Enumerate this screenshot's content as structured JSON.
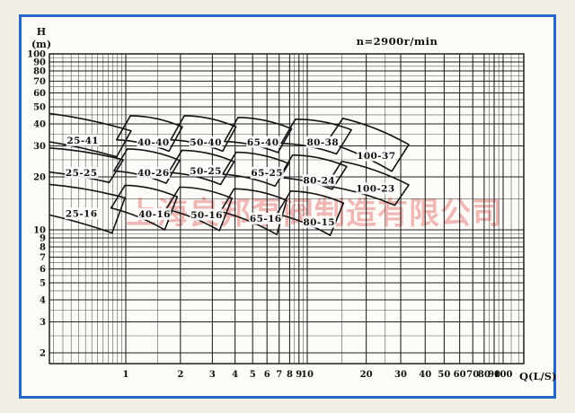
{
  "title": "n=2900r/min",
  "axes": {
    "y_label_top": "H",
    "y_label_unit": "(m)",
    "x_unit": "Q(L/S)",
    "y_ticks": [
      100,
      90,
      80,
      70,
      60,
      50,
      40,
      30,
      20,
      10,
      9,
      8,
      7,
      6,
      5,
      4,
      3,
      2
    ],
    "x_ticks": [
      1,
      2,
      3,
      4,
      5,
      6,
      7,
      8,
      9,
      10,
      20,
      30,
      40,
      50,
      60,
      70,
      80,
      90,
      100
    ],
    "y_minor": [
      2.5,
      3.5,
      4.5,
      5.5,
      6.5,
      7.5,
      8.5,
      9.5,
      15,
      25,
      35,
      45,
      55,
      65,
      75,
      85,
      95
    ],
    "x_minor": [
      0.4,
      0.45,
      0.5,
      0.55,
      0.6,
      0.65,
      0.7,
      0.75,
      0.8,
      0.85,
      0.9,
      0.95,
      1.5,
      8.5,
      9.5,
      15,
      25,
      85,
      95,
      110,
      120
    ]
  },
  "watermark": {
    "text": "上海良邦泵阀制造有限公司",
    "color": "#e05555"
  },
  "colors": {
    "frame": "#2668c6",
    "outer_bg": "#f2efe8",
    "paper": "#fcfbf7",
    "grid_major": "#1f1f1f",
    "grid_minor": "#3c3c3c",
    "curve": "#141414",
    "watermark": "#e05555"
  },
  "chart_data": {
    "type": "area",
    "title": "n=2900r/min",
    "xlabel": "Q(L/S)",
    "ylabel": "H(m)",
    "log_x": true,
    "log_y": true,
    "x_range": [
      0.38,
      127
    ],
    "y_range": [
      1.74,
      100
    ],
    "grid": "log-log graph paper",
    "legend_position": "none",
    "regions": [
      {
        "label": "25-41",
        "label_at": [
          0.58,
          32.3
        ],
        "poly": [
          [
            0.3,
            47
          ],
          [
            1.07,
            36.5
          ],
          [
            0.89,
            26
          ],
          [
            0.25,
            33.5
          ]
        ]
      },
      {
        "label": "40-40",
        "label_at": [
          1.42,
          31.6
        ],
        "poly": [
          [
            1.06,
            44.5
          ],
          [
            2.05,
            38.5
          ],
          [
            1.73,
            28
          ],
          [
            0.89,
            32.5
          ]
        ]
      },
      {
        "label": "50-40",
        "label_at": [
          2.76,
          31.6
        ],
        "poly": [
          [
            2.1,
            44.5
          ],
          [
            4.05,
            38.5
          ],
          [
            3.42,
            28
          ],
          [
            1.77,
            32.5
          ]
        ]
      },
      {
        "label": "65-40",
        "label_at": [
          5.7,
          31.6
        ],
        "poly": [
          [
            4.15,
            43.5
          ],
          [
            8.2,
            37.5
          ],
          [
            6.9,
            27.5
          ],
          [
            3.5,
            31.8
          ]
        ]
      },
      {
        "label": "80-38",
        "label_at": [
          12.0,
          31.5
        ],
        "poly": [
          [
            8.6,
            42.5
          ],
          [
            16.8,
            37.0
          ],
          [
            14.1,
            27.0
          ],
          [
            7.2,
            31.0
          ]
        ]
      },
      {
        "label": "100-37",
        "label_at": [
          22.5,
          26.5
        ],
        "poly": [
          [
            15.2,
            43.0
          ],
          [
            33.0,
            30.5
          ],
          [
            27.0,
            21.5
          ],
          [
            12.6,
            31.5
          ]
        ]
      },
      {
        "label": "25-25",
        "label_at": [
          0.57,
          21.1
        ],
        "poly": [
          [
            0.3,
            29.5
          ],
          [
            0.97,
            25.0
          ],
          [
            0.81,
            18.6
          ],
          [
            0.25,
            22.0
          ]
        ]
      },
      {
        "label": "40-26",
        "label_at": [
          1.42,
          21.1
        ],
        "poly": [
          [
            1.02,
            28.8
          ],
          [
            1.98,
            24.8
          ],
          [
            1.67,
            18.4
          ],
          [
            0.86,
            21.6
          ]
        ]
      },
      {
        "label": "50-25",
        "label_at": [
          2.76,
          21.7
        ],
        "poly": [
          [
            2.04,
            28.3
          ],
          [
            3.95,
            24.4
          ],
          [
            3.33,
            18.1
          ],
          [
            1.72,
            21.2
          ]
        ]
      },
      {
        "label": "65-25",
        "label_at": [
          6.0,
          21.1
        ],
        "poly": [
          [
            4.05,
            27.6
          ],
          [
            7.9,
            23.8
          ],
          [
            6.65,
            17.7
          ],
          [
            3.42,
            20.7
          ]
        ]
      },
      {
        "label": "80-24",
        "label_at": [
          11.5,
          19.1
        ],
        "poly": [
          [
            8.3,
            26.6
          ],
          [
            15.9,
            22.9
          ],
          [
            13.4,
            17.0
          ],
          [
            7.0,
            19.8
          ]
        ]
      },
      {
        "label": "100-23",
        "label_at": [
          22.3,
          17.2
        ],
        "poly": [
          [
            15.0,
            24.5
          ],
          [
            33.0,
            18.0
          ],
          [
            28.0,
            13.8
          ],
          [
            12.5,
            17.8
          ]
        ]
      },
      {
        "label": "25-16",
        "label_at": [
          0.57,
          12.4
        ],
        "poly": [
          [
            0.3,
            18.4
          ],
          [
            0.99,
            15.2
          ],
          [
            0.84,
            9.6
          ],
          [
            0.25,
            13.2
          ]
        ]
      },
      {
        "label": "40-16",
        "label_at": [
          1.44,
          12.3
        ],
        "poly": [
          [
            0.99,
            17.9
          ],
          [
            1.92,
            15.4
          ],
          [
            1.64,
            10.0
          ],
          [
            0.83,
            13.3
          ]
        ]
      },
      {
        "label": "50-16",
        "label_at": [
          2.79,
          12.2
        ],
        "poly": [
          [
            1.98,
            17.5
          ],
          [
            3.85,
            15.1
          ],
          [
            3.28,
            9.9
          ],
          [
            1.67,
            13.1
          ]
        ]
      },
      {
        "label": "65-16",
        "label_at": [
          5.9,
          11.6
        ],
        "poly": [
          [
            3.95,
            17.1
          ],
          [
            7.7,
            14.7
          ],
          [
            6.8,
            9.4
          ],
          [
            3.33,
            12.7
          ]
        ]
      },
      {
        "label": "80-15",
        "label_at": [
          11.5,
          11.1
        ],
        "poly": [
          [
            8.1,
            16.6
          ],
          [
            15.3,
            14.2
          ],
          [
            13.1,
            9.3
          ],
          [
            6.8,
            12.3
          ]
        ]
      }
    ]
  }
}
